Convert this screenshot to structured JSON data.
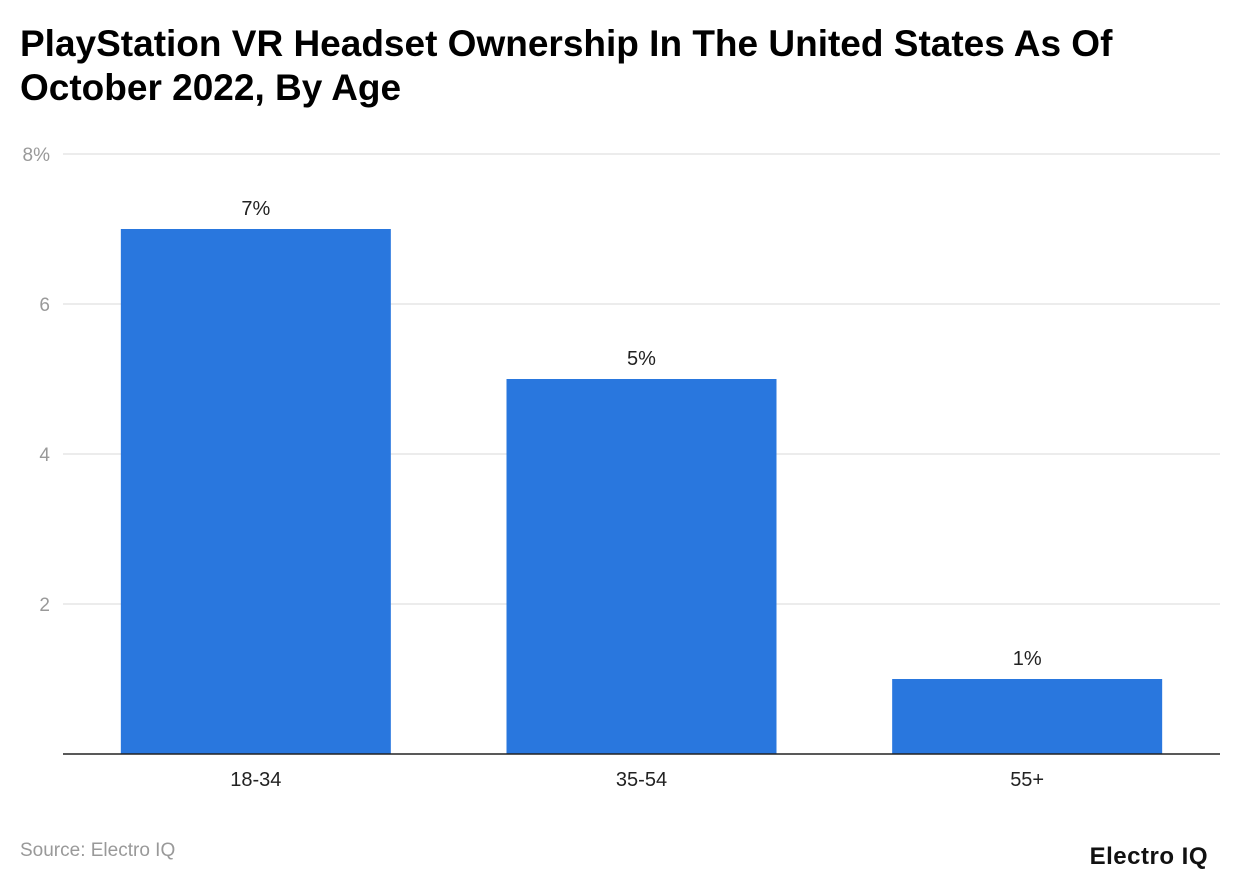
{
  "chart_data": {
    "type": "bar",
    "title": "PlayStation VR Headset Ownership In The United States As Of October 2022, By Age",
    "categories": [
      "18-34",
      "35-54",
      "55+"
    ],
    "values": [
      7,
      5,
      1
    ],
    "data_labels": [
      "7%",
      "5%",
      "1%"
    ],
    "ylim": [
      0,
      8
    ],
    "yticks": [
      2,
      4,
      6,
      8
    ],
    "ytick_labels": [
      "2",
      "4",
      "6",
      "8%"
    ],
    "xlabel": "",
    "ylabel": "",
    "grid": true,
    "bar_color": "#2977DE"
  },
  "source": "Source: Electro IQ",
  "logo": "Electro IQ"
}
